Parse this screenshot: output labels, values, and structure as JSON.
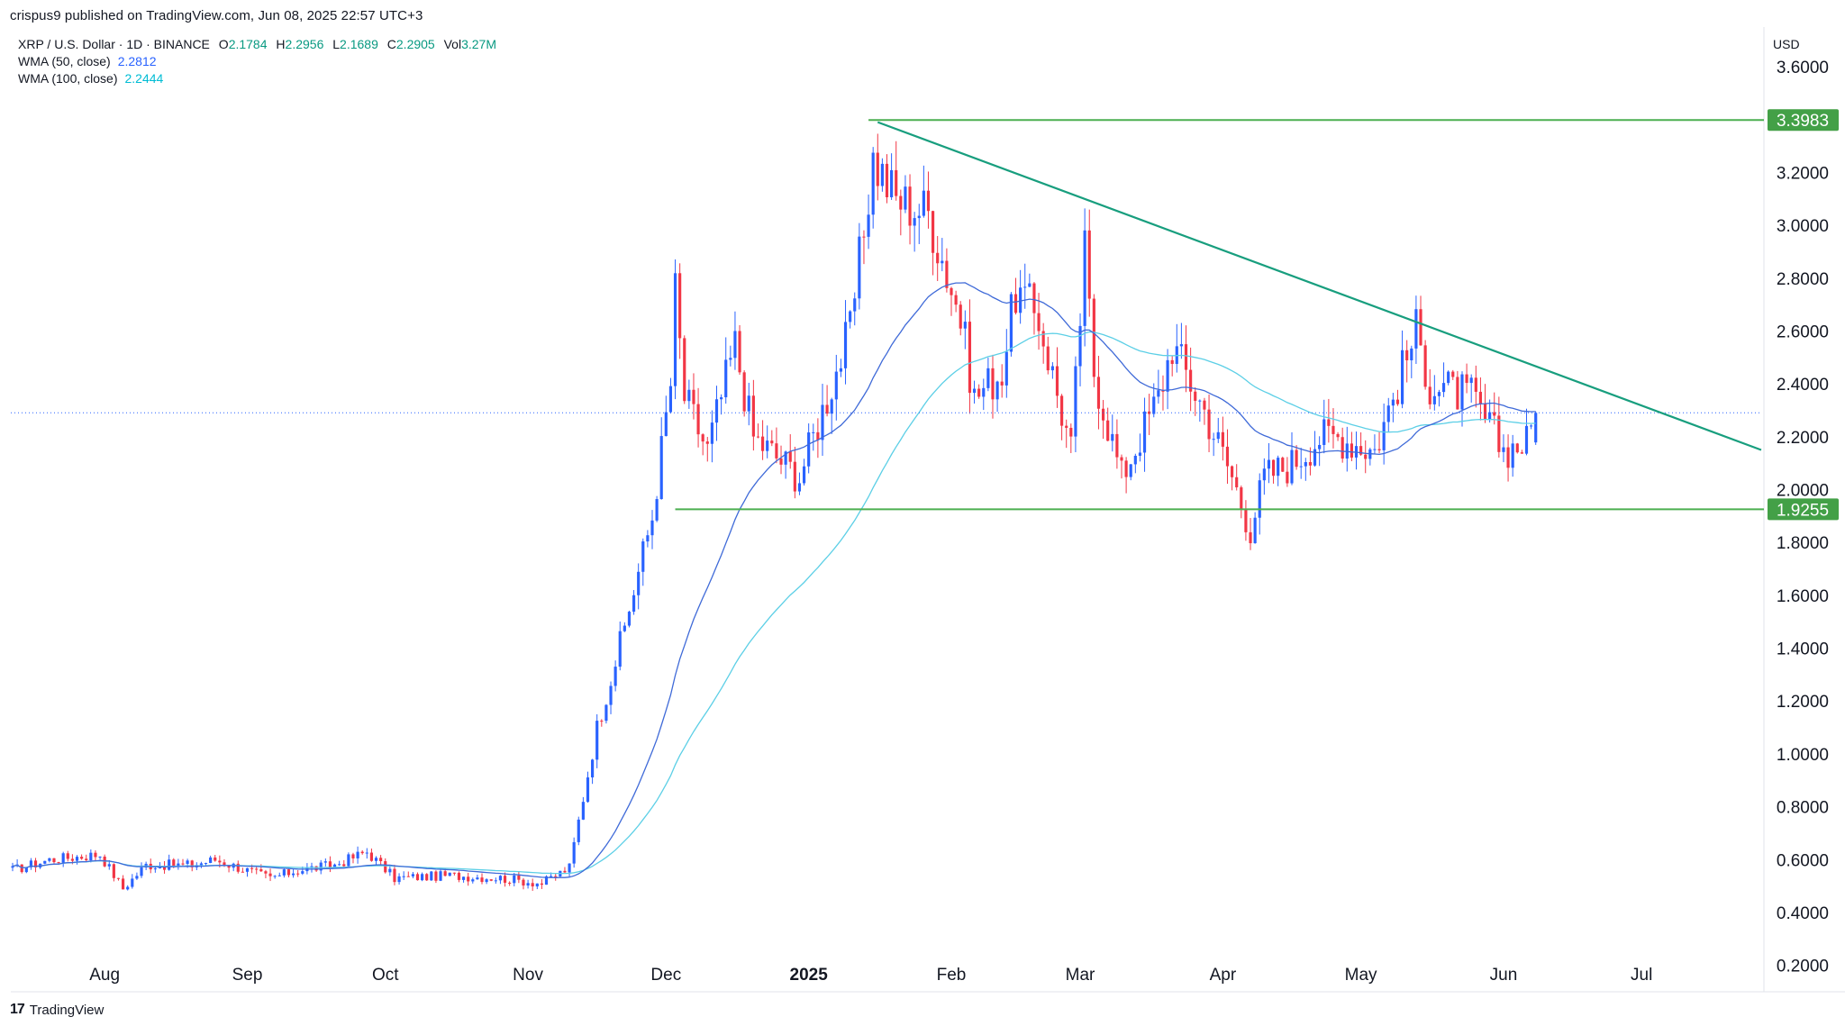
{
  "header": {
    "published": "crispus9 published on TradingView.com, Jun 08, 2025 22:57 UTC+3"
  },
  "legend": {
    "symbol": "XRP / U.S. Dollar · 1D · BINANCE",
    "o_label": "O",
    "o_value": "2.1784",
    "h_label": "H",
    "h_value": "2.2956",
    "l_label": "L",
    "l_value": "2.1689",
    "c_label": "C",
    "c_value": "2.2905",
    "vol_label": "Vol",
    "vol_value": "3.27M",
    "ma50_label": "WMA (50, close)",
    "ma50_value": "2.2812",
    "ma100_label": "WMA (100, close)",
    "ma100_value": "2.2444"
  },
  "currency": "USD",
  "footer": {
    "brand": "TradingView",
    "logo": "17"
  },
  "colors": {
    "up": "#2962ff",
    "down": "#f23645",
    "ma50": "#3f6ad8",
    "ma100": "#5ccfe6",
    "level": "#4caf50",
    "trend": "#189e7e",
    "label_bg": "#43a047",
    "price_line": "#2962ff"
  },
  "chart_data": {
    "type": "candlestick",
    "symbol": "XRP / U.S. Dollar",
    "interval": "1D",
    "exchange": "BINANCE",
    "y_ticks": [
      "3.6000",
      "3.2000",
      "3.0000",
      "2.8000",
      "2.6000",
      "2.4000",
      "2.2000",
      "2.0000",
      "1.8000",
      "1.6000",
      "1.4000",
      "1.2000",
      "1.0000",
      "0.8000",
      "0.6000",
      "0.4000",
      "0.2000"
    ],
    "y_range": [
      0.1,
      3.75
    ],
    "x_ticks": [
      {
        "label": "Aug",
        "date": "2024-08-01",
        "bold": false
      },
      {
        "label": "Sep",
        "date": "2024-09-01",
        "bold": false
      },
      {
        "label": "Oct",
        "date": "2024-10-01",
        "bold": false
      },
      {
        "label": "Nov",
        "date": "2024-11-01",
        "bold": false
      },
      {
        "label": "Dec",
        "date": "2024-12-01",
        "bold": false
      },
      {
        "label": "2025",
        "date": "2025-01-01",
        "bold": true
      },
      {
        "label": "Feb",
        "date": "2025-02-01",
        "bold": false
      },
      {
        "label": "Mar",
        "date": "2025-03-01",
        "bold": false
      },
      {
        "label": "Apr",
        "date": "2025-04-01",
        "bold": false
      },
      {
        "label": "May",
        "date": "2025-05-01",
        "bold": false
      },
      {
        "label": "Jun",
        "date": "2025-06-01",
        "bold": false
      },
      {
        "label": "Jul",
        "date": "2025-07-01",
        "bold": false
      }
    ],
    "x_range": [
      "2024-07-12",
      "2025-07-27"
    ],
    "last_close": 2.2905,
    "levels": [
      {
        "label": "3.3983",
        "value": 3.3983,
        "from": "2025-01-14"
      },
      {
        "label": "1.9255",
        "value": 1.9255,
        "from": "2024-12-03"
      }
    ],
    "trendline": {
      "from_date": "2025-01-16",
      "from_value": 3.39,
      "to_date": "2025-07-27",
      "to_value": 2.15
    },
    "price_path": [
      [
        "2024-07-12",
        0.56
      ],
      [
        "2024-07-20",
        0.6
      ],
      [
        "2024-07-31",
        0.62
      ],
      [
        "2024-08-05",
        0.49
      ],
      [
        "2024-08-10",
        0.58
      ],
      [
        "2024-08-20",
        0.58
      ],
      [
        "2024-08-25",
        0.6
      ],
      [
        "2024-09-06",
        0.53
      ],
      [
        "2024-09-12",
        0.56
      ],
      [
        "2024-09-20",
        0.58
      ],
      [
        "2024-09-27",
        0.63
      ],
      [
        "2024-10-03",
        0.53
      ],
      [
        "2024-10-15",
        0.54
      ],
      [
        "2024-10-26",
        0.53
      ],
      [
        "2024-11-04",
        0.51
      ],
      [
        "2024-11-10",
        0.57
      ],
      [
        "2024-11-16",
        1.1
      ],
      [
        "2024-11-22",
        1.48
      ],
      [
        "2024-11-28",
        1.9
      ],
      [
        "2024-12-02",
        2.4
      ],
      [
        "2024-12-03",
        2.75
      ],
      [
        "2024-12-05",
        2.35
      ],
      [
        "2024-12-10",
        2.15
      ],
      [
        "2024-12-16",
        2.55
      ],
      [
        "2024-12-20",
        2.2
      ],
      [
        "2024-12-30",
        2.05
      ],
      [
        "2025-01-06",
        2.4
      ],
      [
        "2025-01-10",
        2.6
      ],
      [
        "2025-01-15",
        3.25
      ],
      [
        "2025-01-20",
        3.1
      ],
      [
        "2025-01-27",
        3.05
      ],
      [
        "2025-02-03",
        2.65
      ],
      [
        "2025-02-06",
        2.35
      ],
      [
        "2025-02-12",
        2.45
      ],
      [
        "2025-02-15",
        2.75
      ],
      [
        "2025-02-20",
        2.65
      ],
      [
        "2025-02-27",
        2.15
      ],
      [
        "2025-03-02",
        2.9
      ],
      [
        "2025-03-04",
        2.45
      ],
      [
        "2025-03-10",
        2.05
      ],
      [
        "2025-03-18",
        2.35
      ],
      [
        "2025-03-21",
        2.55
      ],
      [
        "2025-03-28",
        2.3
      ],
      [
        "2025-04-03",
        2.05
      ],
      [
        "2025-04-07",
        1.85
      ],
      [
        "2025-04-10",
        2.05
      ],
      [
        "2025-04-16",
        2.1
      ],
      [
        "2025-04-22",
        2.2
      ],
      [
        "2025-04-26",
        2.2
      ],
      [
        "2025-05-04",
        2.15
      ],
      [
        "2025-05-09",
        2.4
      ],
      [
        "2025-05-13",
        2.6
      ],
      [
        "2025-05-16",
        2.4
      ],
      [
        "2025-05-25",
        2.35
      ],
      [
        "2025-06-01",
        2.15
      ],
      [
        "2025-06-06",
        2.18
      ],
      [
        "2025-06-08",
        2.29
      ]
    ]
  }
}
